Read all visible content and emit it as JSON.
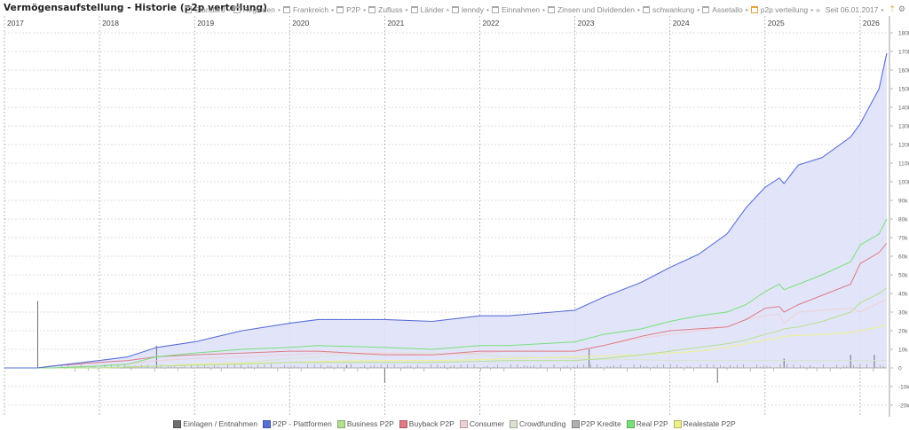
{
  "header": {
    "title": "Vermögensaufstellung - Historie (p2p verteilung)",
    "tabs": [
      {
        "label": "Standard",
        "active": false
      },
      {
        "label": "Regionen",
        "active": false
      },
      {
        "label": "Frankreich",
        "active": false
      },
      {
        "label": "P2P",
        "active": false
      },
      {
        "label": "Zufluss",
        "active": false
      },
      {
        "label": "Länder",
        "active": false
      },
      {
        "label": "lenndy",
        "active": false
      },
      {
        "label": "Einnahmen",
        "active": false
      },
      {
        "label": "Zinsen und Dividenden",
        "active": false
      },
      {
        "label": "schwankung",
        "active": false
      },
      {
        "label": "Assetallo",
        "active": false
      },
      {
        "label": "p2p verteilung",
        "active": true
      }
    ],
    "more_label": "»",
    "since_label": "Seit 06.01.2017",
    "icons": [
      "upload-icon",
      "gear-icon"
    ]
  },
  "colors": {
    "Einlagen / Entnahmen": "#6e6e6e",
    "P2P - Plattformen": "#5a6fd6",
    "Business P2P": "#b5e08f",
    "Buyback P2P": "#e07b86",
    "Consumer": "#f0cfd3",
    "Crowdfunding": "#d9e3cf",
    "P2P Kredite": "#b0b0b0",
    "Real P2P": "#78e078",
    "Realestate P2P": "#eef08a",
    "area_fill": "#dde1f8",
    "grid": "#d0d0d0"
  },
  "chart_data": {
    "type": "line",
    "title": "Vermögensaufstellung - Historie (p2p verteilung)",
    "xlabel": "",
    "ylabel": "",
    "x_tick_labels": [
      "2017",
      "2018",
      "2019",
      "2020",
      "2021",
      "2022",
      "2023",
      "2024",
      "2025",
      "2026"
    ],
    "y_tick_labels": [
      "180k",
      "170k",
      "160k",
      "150k",
      "140k",
      "130k",
      "120k",
      "110k",
      "100k",
      "90k",
      "80k",
      "70k",
      "60k",
      "50k",
      "40k",
      "30k",
      "20k",
      "10k",
      "0",
      "-10k",
      "-20k"
    ],
    "ylim": [
      -20000,
      180000
    ],
    "xlim": [
      2017.0,
      2026.3
    ],
    "grid": true,
    "y_axis_position": "right",
    "legend_position": "bottom",
    "x": [
      2017.0,
      2017.35,
      2017.5,
      2018.0,
      2018.3,
      2018.6,
      2019.0,
      2019.5,
      2020.0,
      2020.3,
      2021.0,
      2021.5,
      2022.0,
      2022.3,
      2023.0,
      2023.3,
      2023.7,
      2024.0,
      2024.3,
      2024.6,
      2024.8,
      2025.0,
      2025.15,
      2025.2,
      2025.35,
      2025.6,
      2025.9,
      2026.0,
      2026.2,
      2026.28
    ],
    "series": [
      {
        "name": "P2P - Plattformen",
        "values": [
          0,
          0,
          1000,
          4000,
          6000,
          11000,
          14000,
          20000,
          24000,
          26000,
          26000,
          25000,
          28000,
          28000,
          31000,
          38000,
          46000,
          54000,
          61000,
          72000,
          86000,
          97000,
          102000,
          99000,
          109000,
          113000,
          124000,
          131000,
          150000,
          169000
        ],
        "fill": true
      },
      {
        "name": "Real P2P",
        "values": [
          0,
          0,
          0,
          1000,
          2000,
          6000,
          8000,
          10000,
          11000,
          12000,
          11000,
          10000,
          12000,
          12000,
          14000,
          18000,
          21000,
          25000,
          28000,
          30000,
          34000,
          41000,
          45000,
          42000,
          45000,
          50000,
          57000,
          66000,
          72000,
          80000
        ]
      },
      {
        "name": "Buyback P2P",
        "values": [
          0,
          0,
          1000,
          3000,
          4000,
          6000,
          7000,
          8000,
          9000,
          9000,
          7000,
          7000,
          9000,
          9000,
          9000,
          12000,
          17000,
          20000,
          21000,
          22000,
          26000,
          32000,
          33000,
          30000,
          34000,
          39000,
          45000,
          56000,
          62000,
          67000
        ]
      },
      {
        "name": "Consumer",
        "values": [
          0,
          0,
          0,
          1000,
          2000,
          4000,
          5000,
          6000,
          7000,
          8000,
          8000,
          7000,
          8000,
          9000,
          9000,
          12000,
          16000,
          18000,
          20000,
          22000,
          26000,
          28000,
          29000,
          24000,
          30000,
          31000,
          32000,
          30000,
          35000,
          37000
        ]
      },
      {
        "name": "Business P2P",
        "values": [
          0,
          0,
          0,
          0,
          500,
          1000,
          1500,
          2000,
          3000,
          3000,
          3000,
          3000,
          3500,
          4000,
          4000,
          5000,
          7000,
          9000,
          11000,
          13000,
          15000,
          18000,
          20000,
          21000,
          22000,
          25000,
          30000,
          35000,
          40000,
          43000
        ]
      },
      {
        "name": "Realestate P2P",
        "values": [
          0,
          0,
          0,
          0,
          500,
          1000,
          2000,
          2500,
          3000,
          3500,
          4000,
          4000,
          4500,
          5000,
          6000,
          6500,
          7000,
          8000,
          9000,
          11000,
          13000,
          15000,
          16000,
          17000,
          17500,
          18000,
          19000,
          20000,
          22000,
          23000
        ]
      },
      {
        "name": "Crowdfunding",
        "values": [
          0,
          0,
          0,
          0,
          500,
          1000,
          1500,
          3000,
          5000,
          6000,
          8000,
          8000,
          7000,
          6000,
          5000,
          4500,
          4500,
          4000,
          4000,
          4000,
          4000,
          4000,
          4000,
          4000,
          4000,
          4000,
          4000,
          4000,
          4000,
          4000
        ]
      },
      {
        "name": "P2P Kredite",
        "values": [
          0,
          0,
          0,
          0,
          0,
          0,
          0,
          0,
          0,
          0,
          0,
          0,
          0,
          0,
          0,
          0,
          0,
          0,
          0,
          0,
          0,
          0,
          0,
          0,
          0,
          0,
          0,
          0,
          0,
          0
        ]
      },
      {
        "name": "Einlagen / Entnahmen",
        "type": "bar",
        "notable_bars": [
          {
            "x": 2017.35,
            "value": 36000
          },
          {
            "x": 2018.6,
            "value": 12000
          },
          {
            "x": 2020.6,
            "value": 1500
          },
          {
            "x": 2021.0,
            "value": -8000
          },
          {
            "x": 2023.15,
            "value": 10000
          },
          {
            "x": 2024.5,
            "value": -8000
          },
          {
            "x": 2025.2,
            "value": 5000
          },
          {
            "x": 2025.9,
            "value": 7000
          },
          {
            "x": 2026.15,
            "value": 7000
          }
        ]
      }
    ]
  },
  "legend": {
    "items": [
      {
        "label": "Einlagen / Entnahmen",
        "color": "#6e6e6e"
      },
      {
        "label": "P2P - Plattformen",
        "color": "#5a6fd6"
      },
      {
        "label": "Business P2P",
        "color": "#b5e08f"
      },
      {
        "label": "Buyback P2P",
        "color": "#e07b86"
      },
      {
        "label": "Consumer",
        "color": "#f0cfd3"
      },
      {
        "label": "Crowdfunding",
        "color": "#d9e3cf"
      },
      {
        "label": "P2P Kredite",
        "color": "#b0b0b0"
      },
      {
        "label": "Real P2P",
        "color": "#78e078"
      },
      {
        "label": "Realestate P2P",
        "color": "#eef08a"
      }
    ]
  }
}
